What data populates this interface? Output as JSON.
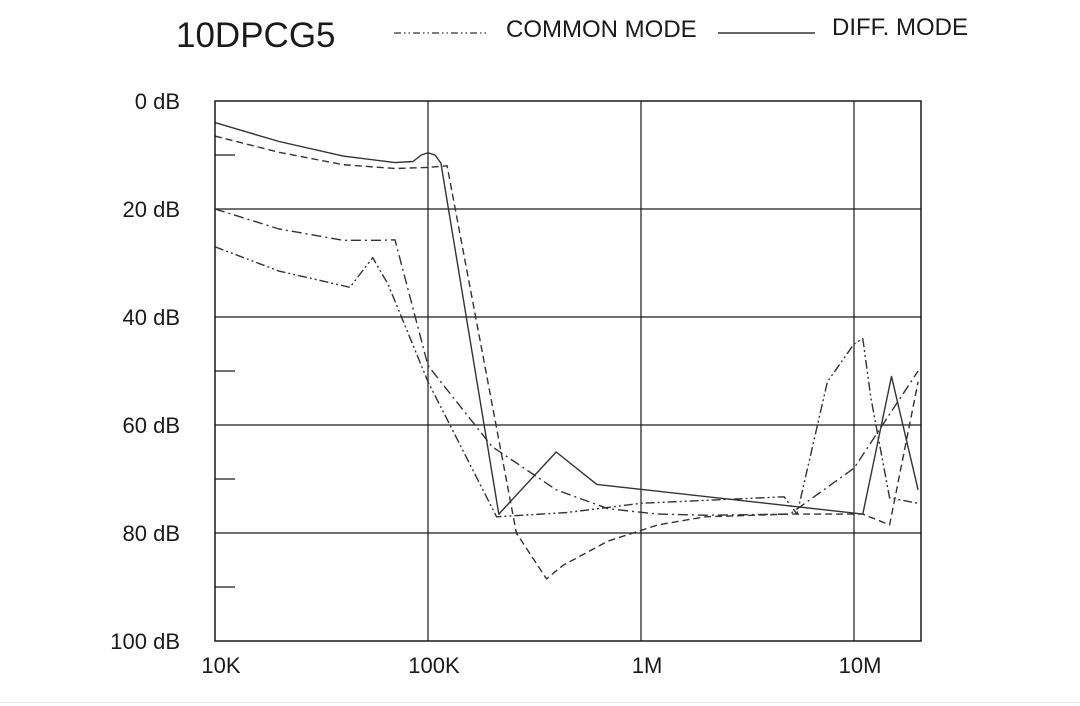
{
  "chart_data": {
    "type": "line",
    "title": "10DPCG5",
    "xlabel": "",
    "ylabel": "",
    "x_scale": "log",
    "xlim": [
      10000,
      20000000
    ],
    "ylim": [
      0,
      100
    ],
    "y_inverted": true,
    "x_ticks": [
      {
        "value": 10000,
        "label": "10K"
      },
      {
        "value": 100000,
        "label": "100K"
      },
      {
        "value": 1000000,
        "label": "1M"
      },
      {
        "value": 10000000,
        "label": "10M"
      }
    ],
    "y_ticks": [
      {
        "value": 0,
        "label": "0 dB"
      },
      {
        "value": 20,
        "label": "20 dB"
      },
      {
        "value": 40,
        "label": "40 dB"
      },
      {
        "value": 60,
        "label": "60 dB"
      },
      {
        "value": 80,
        "label": "80 dB"
      },
      {
        "value": 100,
        "label": "100 dB"
      }
    ],
    "y_minor_ticks": [
      10,
      50,
      70,
      90
    ],
    "grid": true,
    "legend": {
      "position": "top",
      "entries": [
        {
          "label": "COMMON MODE",
          "dash": "dashdotdot"
        },
        {
          "label": "DIFF. MODE",
          "dash": "solid"
        }
      ]
    },
    "series": [
      {
        "dash": "solid",
        "color": "#333333",
        "points": [
          [
            10000,
            4
          ],
          [
            20000,
            7.5
          ],
          [
            40000,
            10.2
          ],
          [
            70000,
            11.4
          ],
          [
            85000,
            11.2
          ],
          [
            93000,
            10
          ],
          [
            100000,
            9.6
          ],
          [
            108000,
            10
          ],
          [
            115000,
            11.5
          ],
          [
            215000,
            76.5
          ],
          [
            400000,
            65
          ],
          [
            620000,
            71
          ],
          [
            11000000,
            76.5
          ],
          [
            15000000,
            51
          ],
          [
            20000000,
            72
          ]
        ]
      },
      {
        "dash": "dashed",
        "color": "#333333",
        "points": [
          [
            10000,
            6.5
          ],
          [
            20000,
            9.5
          ],
          [
            40000,
            11.8
          ],
          [
            70000,
            12.5
          ],
          [
            100000,
            12.3
          ],
          [
            123000,
            12
          ],
          [
            260000,
            80
          ],
          [
            360000,
            88.5
          ],
          [
            430000,
            86
          ],
          [
            700000,
            81.5
          ],
          [
            1200000,
            78.5
          ],
          [
            2000000,
            77
          ],
          [
            5000000,
            76.5
          ],
          [
            11000000,
            76.5
          ],
          [
            14700000,
            78.5
          ],
          [
            20000000,
            52
          ]
        ]
      },
      {
        "dash": "dashdot",
        "color": "#333333",
        "points": [
          [
            10000,
            20
          ],
          [
            20000,
            23.7
          ],
          [
            40000,
            25.8
          ],
          [
            60000,
            25.8
          ],
          [
            70000,
            25.7
          ],
          [
            100000,
            49
          ],
          [
            200000,
            64
          ],
          [
            400000,
            72
          ],
          [
            700000,
            75.5
          ],
          [
            1200000,
            76.5
          ],
          [
            2000000,
            76.7
          ],
          [
            5000000,
            76.5
          ],
          [
            10000000,
            68
          ],
          [
            20000000,
            50
          ]
        ]
      },
      {
        "dash": "dashdotdot",
        "color": "#333333",
        "points": [
          [
            10000,
            27
          ],
          [
            20000,
            31.5
          ],
          [
            43000,
            34.5
          ],
          [
            55000,
            29
          ],
          [
            65000,
            34
          ],
          [
            100000,
            52
          ],
          [
            210000,
            77
          ],
          [
            450000,
            76.2
          ],
          [
            1000000,
            74.5
          ],
          [
            4700000,
            73.3
          ],
          [
            5400000,
            76.5
          ],
          [
            7500000,
            52
          ],
          [
            10000000,
            45
          ],
          [
            11000000,
            44
          ],
          [
            12000000,
            55
          ],
          [
            14700000,
            73.5
          ],
          [
            20000000,
            74.5
          ]
        ]
      }
    ]
  }
}
